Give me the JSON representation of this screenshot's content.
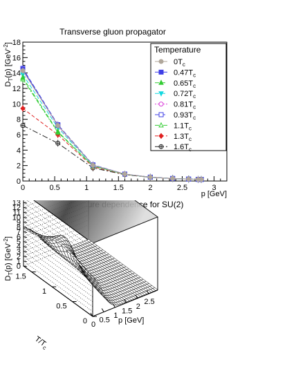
{
  "chart_data": [
    {
      "type": "line",
      "title": "Transverse gluon propagator",
      "xlabel": "p [GeV]",
      "ylabel_main": "D",
      "ylabel_sub": "T",
      "ylabel_rest": "(p) [GeV",
      "ylabel_sup": "-2",
      "ylabel_close": "]",
      "xlim": [
        0,
        3.2
      ],
      "ylim": [
        0,
        18
      ],
      "xticks": [
        "0",
        "0.5",
        "1",
        "1.5",
        "2",
        "2.5",
        "3"
      ],
      "yticks": [
        "0",
        "2",
        "4",
        "6",
        "8",
        "10",
        "12",
        "14",
        "16",
        "18"
      ],
      "legend_title": "Temperature",
      "legend_placement": "top-right",
      "x": [
        0.0,
        0.55,
        1.1,
        1.6,
        2.0,
        2.35,
        2.6,
        2.75,
        2.8
      ],
      "series": [
        {
          "name": "0T",
          "sub": "c",
          "color": "#b0a79b",
          "marker": "circle",
          "dash": "",
          "values": [
            14.3,
            7.2,
            2.05,
            0.9,
            0.5,
            0.33,
            0.25,
            0.21,
            0.2
          ]
        },
        {
          "name": "0.47T",
          "sub": "c",
          "color": "#3f3fe6",
          "marker": "square",
          "dash": "",
          "values": [
            14.5,
            7.2,
            2.05,
            0.9,
            0.5,
            0.33,
            0.25,
            0.21,
            0.2
          ]
        },
        {
          "name": "0.65T",
          "sub": "c",
          "color": "#33cc33",
          "marker": "triangle-up",
          "dash": "6,3",
          "values": [
            13.4,
            6.4,
            1.95,
            0.88,
            0.49,
            0.33,
            0.25,
            0.21,
            0.2
          ]
        },
        {
          "name": "0.72T",
          "sub": "c",
          "color": "#13d8e0",
          "marker": "triangle-down",
          "dash": "6,3",
          "values": [
            13.8,
            6.9,
            2.0,
            0.88,
            0.49,
            0.33,
            0.25,
            0.21,
            0.2
          ]
        },
        {
          "name": "0.81T",
          "sub": "c",
          "color": "#d93ad9",
          "marker": "open-circle",
          "dash": "2,2",
          "values": [
            14.4,
            7.1,
            2.05,
            0.9,
            0.5,
            0.33,
            0.25,
            0.21,
            0.2
          ]
        },
        {
          "name": "0.93T",
          "sub": "c",
          "color": "#3f3fe6",
          "marker": "open-square",
          "dash": "6,3",
          "values": [
            14.6,
            7.3,
            2.1,
            0.9,
            0.5,
            0.33,
            0.25,
            0.21,
            0.2
          ]
        },
        {
          "name": "1.1T",
          "sub": "c",
          "color": "#33cc33",
          "marker": "open-triangle",
          "dash": "6,2,2,2",
          "values": [
            13.2,
            6.3,
            1.95,
            0.87,
            0.49,
            0.33,
            0.25,
            0.21,
            0.2
          ]
        },
        {
          "name": "1.3T",
          "sub": "c",
          "color": "#e02020",
          "marker": "diamond",
          "dash": "5,3",
          "values": [
            9.4,
            6.0,
            1.85,
            0.85,
            0.48,
            0.32,
            0.25,
            0.21,
            0.2
          ]
        },
        {
          "name": "1.6T",
          "sub": "c",
          "color": "#222222",
          "marker": "open-cross",
          "dash": "8,3,2,3",
          "values": [
            7.2,
            4.9,
            1.7,
            0.82,
            0.47,
            0.32,
            0.25,
            0.21,
            0.2
          ]
        }
      ]
    },
    {
      "type": "surface",
      "title": "Temperature dependence for SU(2)",
      "xlabel": "p [GeV]",
      "ylabel_main": "T/T",
      "ylabel_sub": "c",
      "zlabel_main": "D",
      "zlabel_sub": "T",
      "zlabel_rest": "(p) [GeV",
      "zlabel_sup": "-2",
      "zlabel_close": "]",
      "xlim": [
        0,
        2.9
      ],
      "ylim": [
        0,
        1.7
      ],
      "zlim": [
        0,
        15
      ],
      "xticks": [
        "0",
        "0.5",
        "1",
        "1.5",
        "2",
        "2.5"
      ],
      "yticks": [
        "0",
        "0.5",
        "1",
        "1.5"
      ],
      "zticks": [
        "0",
        "1",
        "2",
        "3",
        "4",
        "5",
        "6",
        "7",
        "8",
        "9",
        "10",
        "11",
        "12",
        "13",
        "14"
      ]
    }
  ]
}
